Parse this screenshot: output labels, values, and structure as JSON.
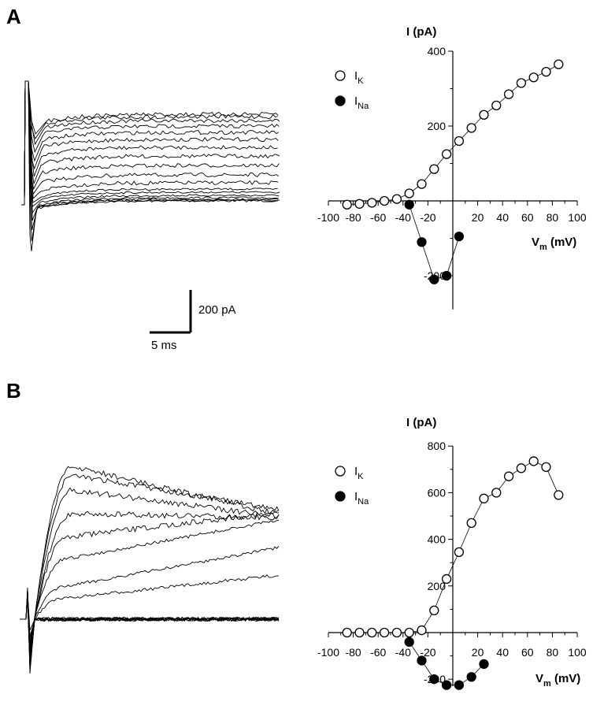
{
  "chart_data": [
    {
      "panel": "A",
      "type": "scatter",
      "ylabel": "I (pA)",
      "xlabel": {
        "main": "V",
        "sub": "m",
        "unit": " (mV)"
      },
      "xticks": [
        -100,
        -80,
        -60,
        -40,
        -20,
        20,
        40,
        60,
        80,
        100
      ],
      "yticks": [
        -200,
        200,
        400
      ],
      "xlim": [
        -100,
        100
      ],
      "ylim": [
        -290,
        400
      ],
      "legend_position": "top-left",
      "series": [
        {
          "name": "I",
          "name_sub": "K",
          "marker": "open-circle",
          "x": [
            -85,
            -75,
            -65,
            -55,
            -45,
            -35,
            -25,
            -15,
            -5,
            5,
            15,
            25,
            35,
            45,
            55,
            65,
            75,
            85
          ],
          "y": [
            -10,
            -8,
            -5,
            0,
            5,
            20,
            45,
            85,
            125,
            160,
            195,
            230,
            255,
            285,
            315,
            330,
            345,
            365
          ]
        },
        {
          "name": "I",
          "name_sub": "Na",
          "marker": "filled-circle",
          "x": [
            -35,
            -25,
            -15,
            -5,
            5
          ],
          "y": [
            -10,
            -110,
            -210,
            -200,
            -95
          ]
        }
      ]
    },
    {
      "panel": "B",
      "type": "scatter",
      "ylabel": "I (pA)",
      "xlabel": {
        "main": "V",
        "sub": "m",
        "unit": " (mV)"
      },
      "xticks": [
        -100,
        -80,
        -60,
        -40,
        -20,
        20,
        40,
        60,
        80,
        100
      ],
      "yticks": [
        -200,
        200,
        400,
        600,
        800
      ],
      "xlim": [
        -100,
        100
      ],
      "ylim": [
        -230,
        800
      ],
      "legend_position": "top-left",
      "series": [
        {
          "name": "I",
          "name_sub": "K",
          "marker": "open-circle",
          "x": [
            -85,
            -75,
            -65,
            -55,
            -45,
            -35,
            -25,
            -15,
            -5,
            5,
            15,
            25,
            35,
            45,
            55,
            65,
            75,
            85
          ],
          "y": [
            0,
            0,
            0,
            0,
            0,
            0,
            10,
            95,
            230,
            345,
            470,
            575,
            600,
            670,
            705,
            735,
            710,
            590
          ]
        },
        {
          "name": "I",
          "name_sub": "Na",
          "marker": "filled-circle",
          "x": [
            -35,
            -25,
            -15,
            -5,
            5,
            15,
            25
          ],
          "y": [
            -40,
            -120,
            -200,
            -225,
            -225,
            -190,
            -135
          ]
        }
      ]
    }
  ],
  "traces_A": {
    "scale_current": "200 pA",
    "scale_time": "5 ms"
  }
}
